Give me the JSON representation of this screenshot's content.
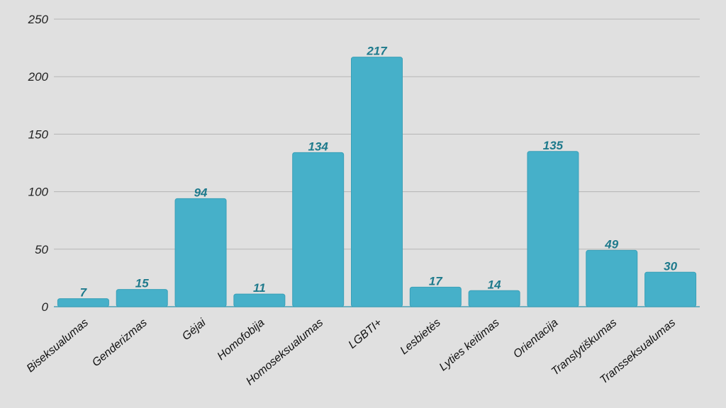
{
  "chart_data": {
    "type": "bar",
    "title": "",
    "xlabel": "",
    "ylabel": "",
    "categories": [
      "Biseksualumas",
      "Genderizmas",
      "Gėjai",
      "Homofobija",
      "Homoseksualumas",
      "LGBTI+",
      "Lesbietės",
      "Lyties keitimas",
      "Orientacija",
      "Translytiškumas",
      "Transseksualumas"
    ],
    "values": [
      7,
      15,
      94,
      11,
      134,
      217,
      17,
      14,
      135,
      49,
      30
    ],
    "ylim": [
      0,
      250
    ],
    "yticks": [
      0,
      50,
      100,
      150,
      200,
      250
    ],
    "grid": true,
    "legend": "none",
    "colors": {
      "bar": "#46b0c9",
      "bar_edge": "#3aa0b8",
      "data_label": "#1e7a8c"
    }
  }
}
